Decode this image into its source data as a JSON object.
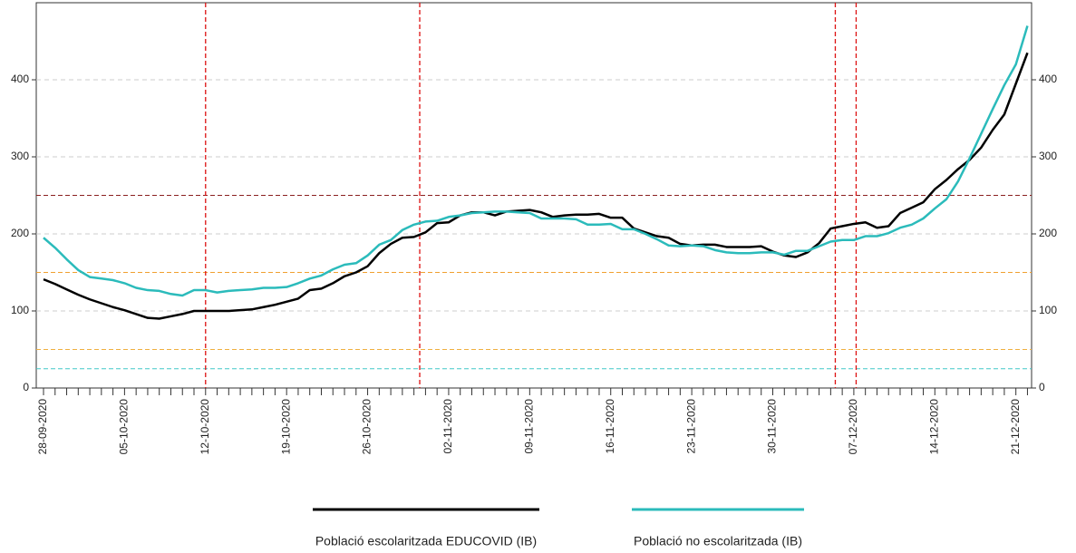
{
  "chart_data": {
    "type": "line",
    "categories": [
      "28-09-2020",
      null,
      null,
      null,
      null,
      null,
      null,
      "05-10-2020",
      null,
      null,
      null,
      null,
      null,
      null,
      "12-10-2020",
      null,
      null,
      null,
      null,
      null,
      null,
      "19-10-2020",
      null,
      null,
      null,
      null,
      null,
      null,
      "26-10-2020",
      null,
      null,
      null,
      null,
      null,
      null,
      "02-11-2020",
      null,
      null,
      null,
      null,
      null,
      null,
      "09-11-2020",
      null,
      null,
      null,
      null,
      null,
      null,
      "16-11-2020",
      null,
      null,
      null,
      null,
      null,
      null,
      "23-11-2020",
      null,
      null,
      null,
      null,
      null,
      null,
      "30-11-2020",
      null,
      null,
      null,
      null,
      null,
      null,
      "07-12-2020",
      null,
      null,
      null,
      null,
      null,
      null,
      "14-12-2020",
      null,
      null,
      null,
      null,
      null,
      null,
      "21-12-2020",
      null
    ],
    "series": [
      {
        "name": "Població escolaritzada EDUCOVID (IB)",
        "color": "#000000",
        "values": [
          141,
          135,
          128,
          121,
          115,
          110,
          105,
          101,
          96,
          91,
          90,
          93,
          96,
          100,
          100,
          100,
          100,
          101,
          102,
          105,
          108,
          112,
          116,
          127,
          129,
          136,
          145,
          150,
          158,
          175,
          187,
          195,
          196,
          202,
          214,
          215,
          224,
          228,
          228,
          224,
          229,
          230,
          231,
          228,
          222,
          224,
          225,
          225,
          226,
          221,
          221,
          207,
          202,
          197,
          195,
          187,
          185,
          186,
          186,
          183,
          183,
          183,
          184,
          177,
          172,
          170,
          176,
          188,
          207,
          210,
          213,
          215,
          208,
          210,
          227,
          234,
          241,
          258,
          270,
          284,
          296,
          312,
          335,
          355,
          395,
          435
        ]
      },
      {
        "name": "Població no escolaritzada (IB)",
        "color": "#2bbbbb",
        "values": [
          195,
          182,
          167,
          153,
          144,
          142,
          140,
          136,
          130,
          127,
          126,
          122,
          120,
          127,
          127,
          124,
          126,
          127,
          128,
          130,
          130,
          131,
          136,
          142,
          146,
          154,
          160,
          162,
          172,
          186,
          192,
          205,
          212,
          216,
          217,
          222,
          224,
          227,
          228,
          229,
          229,
          228,
          227,
          220,
          220,
          220,
          219,
          212,
          212,
          213,
          206,
          206,
          200,
          193,
          185,
          184,
          185,
          184,
          179,
          176,
          175,
          175,
          176,
          176,
          173,
          178,
          178,
          184,
          190,
          192,
          192,
          197,
          197,
          201,
          208,
          212,
          220,
          233,
          245,
          268,
          298,
          330,
          362,
          393,
          420,
          470
        ]
      }
    ],
    "ylim": [
      0,
      500
    ],
    "yticks": [
      0,
      100,
      200,
      300,
      400
    ],
    "y2lim": [
      0,
      500
    ],
    "y2ticks": [
      0,
      100,
      200,
      300,
      400
    ],
    "grid": true,
    "hlines": [
      {
        "value": 250,
        "color": "#8b2020"
      },
      {
        "value": 150,
        "color": "#f0a030"
      },
      {
        "value": 50,
        "color": "#f0b040"
      },
      {
        "value": 25,
        "color": "#40c8c8"
      }
    ],
    "vlines": [
      14,
      32.5,
      68.4,
      70.2
    ],
    "vline_color": "#dd1111"
  }
}
